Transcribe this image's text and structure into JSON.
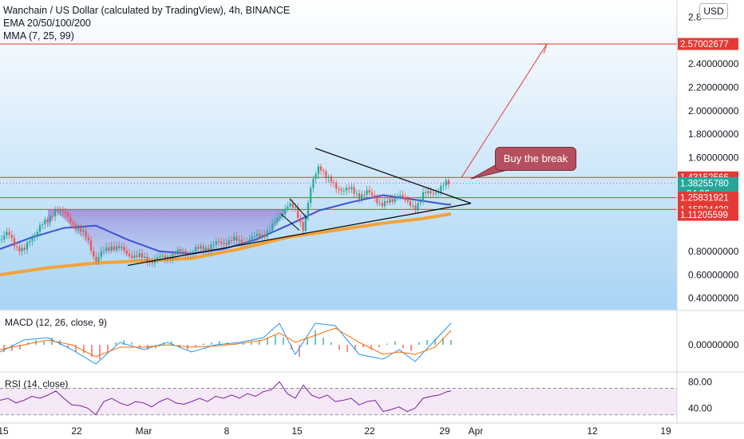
{
  "header": {
    "title": "Wanchain / US Dollar (calculated by TradingView), 4h, BINANCE",
    "ema_label": "EMA 20/50/100/200",
    "mma_label": "MMA (7, 25, 99)"
  },
  "currency_button": "USD",
  "annotation": "Buy the break",
  "colors": {
    "up": "#26a69a",
    "down": "#ef5350",
    "level_line": "#e53935",
    "ema_blue": "#3f51d6",
    "ema_orange": "#f2a33a",
    "macd_line": "#2196f3",
    "signal_line": "#ff6d00",
    "rsi_line": "#7b1fa2",
    "callout_bg": "#b5505e",
    "arrow": "#e53935"
  },
  "chart_data": [
    {
      "type": "line",
      "title": "Wanchain / US Dollar (calculated by TradingView), 4h, BINANCE",
      "x_ticks": [
        "15",
        "22",
        "Mar",
        "8",
        "15",
        "22",
        "29",
        "Apr",
        "12",
        "19"
      ],
      "y_ticks": [
        "2.8",
        "2.40000000",
        "2.20000000",
        "2.00000000",
        "1.80000000",
        "1.60000000",
        "0.80000000",
        "0.60000000",
        "0.40000000"
      ],
      "ylim": [
        0.35,
        2.85
      ],
      "price_labels": [
        {
          "value": 2.57002677,
          "text": "2.57002677",
          "color": "#e53935"
        },
        {
          "value": 1.43152566,
          "text": "1.43152566",
          "color": "#e53935"
        },
        {
          "value": 1.3825578,
          "text": "1.38255780",
          "sub": "24:26",
          "color": "#26a69a"
        },
        {
          "value": 1.25831921,
          "text": "1.25831921",
          "color": "#e53935"
        },
        {
          "value": 1.15824438,
          "text": "1.15824438",
          "color": "#e53935"
        },
        {
          "value": 1.11205599,
          "text": "1.11205599",
          "color": "#e53935"
        }
      ],
      "horizontal_levels": [
        1.43152566,
        1.25831921,
        1.15824438
      ],
      "price_path": [
        {
          "x": 0,
          "y": 0.9
        },
        {
          "x": 10,
          "y": 0.95
        },
        {
          "x": 20,
          "y": 0.85
        },
        {
          "x": 30,
          "y": 0.8
        },
        {
          "x": 40,
          "y": 0.92
        },
        {
          "x": 50,
          "y": 1.02
        },
        {
          "x": 60,
          "y": 1.05
        },
        {
          "x": 70,
          "y": 1.18
        },
        {
          "x": 80,
          "y": 1.12
        },
        {
          "x": 90,
          "y": 1.05
        },
        {
          "x": 100,
          "y": 0.98
        },
        {
          "x": 110,
          "y": 0.9
        },
        {
          "x": 120,
          "y": 0.72
        },
        {
          "x": 130,
          "y": 0.8
        },
        {
          "x": 140,
          "y": 0.85
        },
        {
          "x": 150,
          "y": 0.82
        },
        {
          "x": 160,
          "y": 0.78
        },
        {
          "x": 170,
          "y": 0.76
        },
        {
          "x": 180,
          "y": 0.74
        },
        {
          "x": 190,
          "y": 0.72
        },
        {
          "x": 200,
          "y": 0.74
        },
        {
          "x": 210,
          "y": 0.76
        },
        {
          "x": 220,
          "y": 0.78
        },
        {
          "x": 230,
          "y": 0.8
        },
        {
          "x": 240,
          "y": 0.8
        },
        {
          "x": 250,
          "y": 0.82
        },
        {
          "x": 260,
          "y": 0.84
        },
        {
          "x": 270,
          "y": 0.86
        },
        {
          "x": 280,
          "y": 0.88
        },
        {
          "x": 290,
          "y": 0.9
        },
        {
          "x": 300,
          "y": 0.88
        },
        {
          "x": 310,
          "y": 0.9
        },
        {
          "x": 320,
          "y": 0.92
        },
        {
          "x": 330,
          "y": 0.95
        },
        {
          "x": 340,
          "y": 1.0
        },
        {
          "x": 350,
          "y": 1.1
        },
        {
          "x": 360,
          "y": 1.2
        },
        {
          "x": 370,
          "y": 1.15
        },
        {
          "x": 380,
          "y": 1.0
        },
        {
          "x": 390,
          "y": 1.35
        },
        {
          "x": 400,
          "y": 1.55
        },
        {
          "x": 410,
          "y": 1.42
        },
        {
          "x": 420,
          "y": 1.35
        },
        {
          "x": 430,
          "y": 1.33
        },
        {
          "x": 440,
          "y": 1.32
        },
        {
          "x": 450,
          "y": 1.28
        },
        {
          "x": 460,
          "y": 1.3
        },
        {
          "x": 470,
          "y": 1.25
        },
        {
          "x": 480,
          "y": 1.2
        },
        {
          "x": 490,
          "y": 1.22
        },
        {
          "x": 500,
          "y": 1.3
        },
        {
          "x": 510,
          "y": 1.2
        },
        {
          "x": 520,
          "y": 1.18
        },
        {
          "x": 530,
          "y": 1.28
        },
        {
          "x": 540,
          "y": 1.3
        },
        {
          "x": 550,
          "y": 1.33
        },
        {
          "x": 560,
          "y": 1.38
        },
        {
          "x": 565,
          "y": 1.3826
        }
      ],
      "ema_blue": [
        {
          "x": 0,
          "y": 0.82
        },
        {
          "x": 40,
          "y": 0.92
        },
        {
          "x": 80,
          "y": 1.0
        },
        {
          "x": 120,
          "y": 1.02
        },
        {
          "x": 160,
          "y": 0.9
        },
        {
          "x": 200,
          "y": 0.8
        },
        {
          "x": 240,
          "y": 0.78
        },
        {
          "x": 280,
          "y": 0.82
        },
        {
          "x": 320,
          "y": 0.9
        },
        {
          "x": 360,
          "y": 1.02
        },
        {
          "x": 400,
          "y": 1.15
        },
        {
          "x": 440,
          "y": 1.22
        },
        {
          "x": 480,
          "y": 1.28
        },
        {
          "x": 520,
          "y": 1.24
        },
        {
          "x": 560,
          "y": 1.2
        },
        {
          "x": 565,
          "y": 1.2
        }
      ],
      "ema_orange": [
        {
          "x": 0,
          "y": 0.6
        },
        {
          "x": 60,
          "y": 0.66
        },
        {
          "x": 120,
          "y": 0.7
        },
        {
          "x": 180,
          "y": 0.72
        },
        {
          "x": 240,
          "y": 0.74
        },
        {
          "x": 300,
          "y": 0.82
        },
        {
          "x": 360,
          "y": 0.92
        },
        {
          "x": 420,
          "y": 0.98
        },
        {
          "x": 480,
          "y": 1.04
        },
        {
          "x": 530,
          "y": 1.08
        },
        {
          "x": 565,
          "y": 1.12
        }
      ],
      "triangle_upper": [
        {
          "x": 395,
          "y": 1.68
        },
        {
          "x": 590,
          "y": 1.21
        }
      ],
      "triangle_lower": [
        {
          "x": 160,
          "y": 0.68
        },
        {
          "x": 590,
          "y": 1.21
        }
      ],
      "projection_arrow": [
        {
          "x": 578,
          "y": 1.43
        },
        {
          "x": 685,
          "y": 2.57
        }
      ]
    },
    {
      "type": "bar",
      "title": "MACD (12, 26, close, 9)",
      "y_ticks": [
        "0.00000000"
      ],
      "ylim": [
        -1,
        1
      ],
      "histogram": [
        {
          "x": 5,
          "y": -0.3
        },
        {
          "x": 15,
          "y": -0.25
        },
        {
          "x": 25,
          "y": -0.2
        },
        {
          "x": 35,
          "y": 0.1
        },
        {
          "x": 45,
          "y": 0.2
        },
        {
          "x": 55,
          "y": 0.15
        },
        {
          "x": 65,
          "y": 0.3
        },
        {
          "x": 75,
          "y": 0.2
        },
        {
          "x": 85,
          "y": -0.1
        },
        {
          "x": 95,
          "y": -0.3
        },
        {
          "x": 105,
          "y": -0.35
        },
        {
          "x": 115,
          "y": -0.5
        },
        {
          "x": 125,
          "y": -0.6
        },
        {
          "x": 135,
          "y": -0.3
        },
        {
          "x": 145,
          "y": 0.1
        },
        {
          "x": 155,
          "y": 0.2
        },
        {
          "x": 165,
          "y": 0.1
        },
        {
          "x": 175,
          "y": -0.1
        },
        {
          "x": 185,
          "y": -0.2
        },
        {
          "x": 195,
          "y": -0.15
        },
        {
          "x": 205,
          "y": 0.1
        },
        {
          "x": 215,
          "y": 0.15
        },
        {
          "x": 225,
          "y": -0.1
        },
        {
          "x": 235,
          "y": -0.2
        },
        {
          "x": 245,
          "y": -0.1
        },
        {
          "x": 255,
          "y": 0.05
        },
        {
          "x": 265,
          "y": 0.1
        },
        {
          "x": 275,
          "y": 0.15
        },
        {
          "x": 285,
          "y": 0.1
        },
        {
          "x": 295,
          "y": 0.05
        },
        {
          "x": 305,
          "y": 0.1
        },
        {
          "x": 315,
          "y": 0.15
        },
        {
          "x": 325,
          "y": 0.2
        },
        {
          "x": 335,
          "y": 0.3
        },
        {
          "x": 345,
          "y": 0.4
        },
        {
          "x": 355,
          "y": 0.3
        },
        {
          "x": 365,
          "y": -0.2
        },
        {
          "x": 375,
          "y": -0.5
        },
        {
          "x": 385,
          "y": 0.3
        },
        {
          "x": 395,
          "y": 0.6
        },
        {
          "x": 405,
          "y": 0.3
        },
        {
          "x": 415,
          "y": 0.1
        },
        {
          "x": 425,
          "y": -0.2
        },
        {
          "x": 435,
          "y": -0.3
        },
        {
          "x": 445,
          "y": -0.2
        },
        {
          "x": 455,
          "y": -0.1
        },
        {
          "x": 465,
          "y": -0.2
        },
        {
          "x": 475,
          "y": -0.1
        },
        {
          "x": 485,
          "y": 0.05
        },
        {
          "x": 495,
          "y": 0.15
        },
        {
          "x": 505,
          "y": -0.15
        },
        {
          "x": 515,
          "y": -0.25
        },
        {
          "x": 525,
          "y": 0.1
        },
        {
          "x": 535,
          "y": 0.2
        },
        {
          "x": 545,
          "y": 0.25
        },
        {
          "x": 555,
          "y": 0.3
        },
        {
          "x": 565,
          "y": 0.2
        }
      ],
      "macd_line": [
        {
          "x": 0,
          "y": -0.3
        },
        {
          "x": 30,
          "y": 0.2
        },
        {
          "x": 60,
          "y": 0.3
        },
        {
          "x": 90,
          "y": -0.2
        },
        {
          "x": 120,
          "y": -0.8
        },
        {
          "x": 150,
          "y": 0.1
        },
        {
          "x": 180,
          "y": -0.2
        },
        {
          "x": 210,
          "y": 0.1
        },
        {
          "x": 240,
          "y": -0.3
        },
        {
          "x": 270,
          "y": 0.0
        },
        {
          "x": 300,
          "y": 0.1
        },
        {
          "x": 330,
          "y": 0.3
        },
        {
          "x": 350,
          "y": 0.9
        },
        {
          "x": 370,
          "y": -0.4
        },
        {
          "x": 395,
          "y": 0.9
        },
        {
          "x": 420,
          "y": 0.8
        },
        {
          "x": 450,
          "y": -0.4
        },
        {
          "x": 480,
          "y": -0.6
        },
        {
          "x": 500,
          "y": -0.2
        },
        {
          "x": 520,
          "y": -0.7
        },
        {
          "x": 545,
          "y": 0.2
        },
        {
          "x": 565,
          "y": 0.9
        }
      ],
      "signal_line": [
        {
          "x": 0,
          "y": -0.2
        },
        {
          "x": 30,
          "y": 0.0
        },
        {
          "x": 60,
          "y": 0.2
        },
        {
          "x": 90,
          "y": 0.0
        },
        {
          "x": 120,
          "y": -0.5
        },
        {
          "x": 150,
          "y": -0.1
        },
        {
          "x": 180,
          "y": -0.1
        },
        {
          "x": 210,
          "y": 0.0
        },
        {
          "x": 240,
          "y": -0.1
        },
        {
          "x": 270,
          "y": -0.05
        },
        {
          "x": 300,
          "y": 0.05
        },
        {
          "x": 330,
          "y": 0.2
        },
        {
          "x": 350,
          "y": 0.5
        },
        {
          "x": 370,
          "y": 0.1
        },
        {
          "x": 395,
          "y": 0.4
        },
        {
          "x": 420,
          "y": 0.7
        },
        {
          "x": 450,
          "y": 0.1
        },
        {
          "x": 480,
          "y": -0.4
        },
        {
          "x": 500,
          "y": -0.3
        },
        {
          "x": 520,
          "y": -0.4
        },
        {
          "x": 545,
          "y": -0.1
        },
        {
          "x": 565,
          "y": 0.6
        }
      ]
    },
    {
      "type": "line",
      "title": "RSI (14, close)",
      "y_ticks": [
        "80.00",
        "40.00"
      ],
      "ylim": [
        20,
        90
      ],
      "band": [
        30,
        70
      ],
      "series": [
        {
          "values": [
            {
              "x": 0,
              "y": 52
            },
            {
              "x": 10,
              "y": 55
            },
            {
              "x": 20,
              "y": 48
            },
            {
              "x": 30,
              "y": 52
            },
            {
              "x": 40,
              "y": 58
            },
            {
              "x": 50,
              "y": 55
            },
            {
              "x": 60,
              "y": 60
            },
            {
              "x": 70,
              "y": 66
            },
            {
              "x": 80,
              "y": 55
            },
            {
              "x": 90,
              "y": 45
            },
            {
              "x": 100,
              "y": 44
            },
            {
              "x": 110,
              "y": 40
            },
            {
              "x": 120,
              "y": 30
            },
            {
              "x": 130,
              "y": 50
            },
            {
              "x": 140,
              "y": 55
            },
            {
              "x": 150,
              "y": 48
            },
            {
              "x": 160,
              "y": 44
            },
            {
              "x": 170,
              "y": 50
            },
            {
              "x": 180,
              "y": 48
            },
            {
              "x": 190,
              "y": 42
            },
            {
              "x": 200,
              "y": 50
            },
            {
              "x": 210,
              "y": 55
            },
            {
              "x": 220,
              "y": 48
            },
            {
              "x": 230,
              "y": 46
            },
            {
              "x": 240,
              "y": 50
            },
            {
              "x": 250,
              "y": 55
            },
            {
              "x": 260,
              "y": 50
            },
            {
              "x": 270,
              "y": 58
            },
            {
              "x": 280,
              "y": 55
            },
            {
              "x": 290,
              "y": 60
            },
            {
              "x": 300,
              "y": 55
            },
            {
              "x": 310,
              "y": 62
            },
            {
              "x": 320,
              "y": 58
            },
            {
              "x": 330,
              "y": 65
            },
            {
              "x": 340,
              "y": 68
            },
            {
              "x": 350,
              "y": 80
            },
            {
              "x": 360,
              "y": 62
            },
            {
              "x": 370,
              "y": 55
            },
            {
              "x": 380,
              "y": 75
            },
            {
              "x": 390,
              "y": 60
            },
            {
              "x": 400,
              "y": 55
            },
            {
              "x": 410,
              "y": 60
            },
            {
              "x": 420,
              "y": 50
            },
            {
              "x": 430,
              "y": 52
            },
            {
              "x": 440,
              "y": 55
            },
            {
              "x": 450,
              "y": 45
            },
            {
              "x": 460,
              "y": 50
            },
            {
              "x": 470,
              "y": 52
            },
            {
              "x": 480,
              "y": 35
            },
            {
              "x": 490,
              "y": 38
            },
            {
              "x": 500,
              "y": 42
            },
            {
              "x": 510,
              "y": 35
            },
            {
              "x": 520,
              "y": 40
            },
            {
              "x": 530,
              "y": 55
            },
            {
              "x": 540,
              "y": 58
            },
            {
              "x": 550,
              "y": 60
            },
            {
              "x": 560,
              "y": 65
            },
            {
              "x": 565,
              "y": 66
            }
          ]
        }
      ]
    }
  ]
}
